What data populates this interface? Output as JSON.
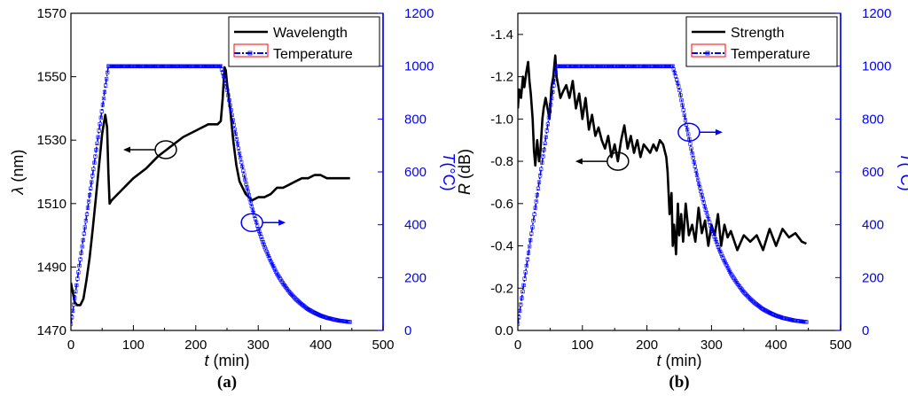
{
  "chart_data": [
    {
      "type": "line",
      "panel_label": "(a)",
      "x_axis": {
        "label": "t",
        "unit": " (min)",
        "range": [
          0,
          500
        ],
        "ticks": [
          0,
          100,
          200,
          300,
          400,
          500
        ]
      },
      "y_left": {
        "label": "λ",
        "unit": " (nm)",
        "range": [
          1470,
          1570
        ],
        "ticks": [
          1470,
          1490,
          1510,
          1530,
          1550,
          1570
        ]
      },
      "y_right": {
        "label": "T",
        "unit": "(°C)",
        "range": [
          0,
          1200
        ],
        "ticks": [
          0,
          200,
          400,
          600,
          800,
          1000,
          1200
        ],
        "color": "#0000ff"
      },
      "legend": {
        "placement": "top-right",
        "entries": [
          "Wavelength",
          "Temperature"
        ]
      },
      "series": [
        {
          "name": "Wavelength",
          "axis": "left",
          "color": "#000000",
          "x": [
            0,
            3,
            6,
            10,
            15,
            20,
            25,
            30,
            35,
            40,
            45,
            50,
            55,
            58,
            60,
            62,
            65,
            80,
            100,
            120,
            140,
            160,
            180,
            200,
            220,
            235,
            240,
            243,
            246,
            248,
            250,
            255,
            260,
            265,
            270,
            280,
            290,
            300,
            310,
            320,
            330,
            340,
            350,
            360,
            370,
            380,
            390,
            400,
            410,
            420,
            430,
            440,
            447
          ],
          "y": [
            1485,
            1482,
            1479,
            1478,
            1478,
            1480,
            1486,
            1493,
            1502,
            1512,
            1522,
            1532,
            1538,
            1534,
            1520,
            1510,
            1511,
            1514,
            1518,
            1521,
            1525,
            1528,
            1531,
            1533,
            1535,
            1535,
            1536,
            1543,
            1553,
            1552,
            1548,
            1540,
            1530,
            1522,
            1517,
            1513,
            1511,
            1512,
            1512,
            1513,
            1515,
            1515,
            1516,
            1517,
            1518,
            1518,
            1519,
            1519,
            1518,
            1518,
            1518,
            1518,
            1518
          ]
        },
        {
          "name": "Temperature",
          "axis": "right",
          "color": "#0000ff",
          "x": [
            0,
            60,
            240,
            250,
            260,
            270,
            280,
            290,
            300,
            310,
            320,
            330,
            340,
            350,
            360,
            370,
            380,
            390,
            400,
            410,
            420,
            430,
            440,
            447
          ],
          "y": [
            25,
            1000,
            1000,
            915,
            790,
            670,
            560,
            465,
            385,
            318,
            262,
            215,
            177,
            145,
            119,
            98,
            80,
            67,
            56,
            48,
            42,
            37,
            34,
            32
          ]
        }
      ],
      "annotations": [
        {
          "type": "circle-arrow",
          "at": [
            152,
            1527
          ],
          "direction": "left",
          "target": "left-axis"
        },
        {
          "type": "circle-arrow",
          "at": [
            290,
            1504
          ],
          "direction": "right",
          "target": "right-axis"
        }
      ]
    },
    {
      "type": "line",
      "panel_label": "(b)",
      "x_axis": {
        "label": "t",
        "unit": " (min)",
        "range": [
          0,
          500
        ],
        "ticks": [
          0,
          100,
          200,
          300,
          400,
          500
        ]
      },
      "y_left": {
        "label": "R",
        "unit": " (dB)",
        "range": [
          0,
          -1.5
        ],
        "ticks": [
          0,
          -0.2,
          -0.4,
          -0.6,
          -0.8,
          -1.0,
          -1.2,
          -1.4
        ],
        "tick_labels": [
          "0.0",
          "-0.2",
          "-0.4",
          "-0.6",
          "-0.8",
          "-1.0",
          "-1.2",
          "-1.4"
        ]
      },
      "y_right": {
        "label": "T",
        "unit": "(°C)",
        "range": [
          0,
          1200
        ],
        "ticks": [
          0,
          200,
          400,
          600,
          800,
          1000,
          1200
        ],
        "color": "#0000ff"
      },
      "legend": {
        "placement": "top-right",
        "entries": [
          "Strength",
          "Temperature"
        ]
      },
      "series": [
        {
          "name": "Strength",
          "axis": "left",
          "color": "#000000",
          "x": [
            0,
            2,
            5,
            8,
            10,
            13,
            16,
            18,
            20,
            23,
            25,
            27,
            30,
            33,
            35,
            38,
            40,
            43,
            46,
            49,
            52,
            55,
            58,
            60,
            63,
            66,
            70,
            75,
            80,
            85,
            90,
            95,
            100,
            105,
            110,
            115,
            120,
            125,
            130,
            135,
            140,
            145,
            150,
            155,
            160,
            165,
            170,
            175,
            180,
            185,
            190,
            195,
            200,
            205,
            210,
            215,
            220,
            225,
            230,
            232,
            235,
            238,
            240,
            242,
            245,
            248,
            250,
            253,
            256,
            260,
            265,
            270,
            275,
            280,
            285,
            290,
            295,
            300,
            305,
            310,
            315,
            320,
            325,
            330,
            340,
            350,
            360,
            370,
            380,
            390,
            400,
            410,
            420,
            430,
            440,
            447
          ],
          "y": [
            -1.05,
            -1.14,
            -1.1,
            -1.2,
            -1.15,
            -1.22,
            -1.27,
            -1.18,
            -1.12,
            -1.0,
            -0.85,
            -0.78,
            -0.9,
            -0.8,
            -0.85,
            -1.0,
            -1.05,
            -1.1,
            -1.05,
            -1.0,
            -1.15,
            -1.2,
            -1.3,
            -1.2,
            -1.15,
            -1.1,
            -1.13,
            -1.16,
            -1.1,
            -1.18,
            -1.05,
            -1.12,
            -1.0,
            -1.1,
            -0.95,
            -1.02,
            -0.92,
            -0.96,
            -0.9,
            -0.86,
            -0.92,
            -0.82,
            -0.88,
            -0.8,
            -0.9,
            -0.97,
            -0.86,
            -0.92,
            -0.84,
            -0.9,
            -0.82,
            -0.88,
            -0.86,
            -0.84,
            -0.88,
            -0.85,
            -0.9,
            -0.88,
            -0.82,
            -0.75,
            -0.55,
            -0.65,
            -0.4,
            -0.5,
            -0.36,
            -0.6,
            -0.45,
            -0.55,
            -0.42,
            -0.6,
            -0.45,
            -0.5,
            -0.42,
            -0.58,
            -0.46,
            -0.52,
            -0.4,
            -0.5,
            -0.45,
            -0.55,
            -0.4,
            -0.5,
            -0.44,
            -0.47,
            -0.38,
            -0.45,
            -0.42,
            -0.45,
            -0.38,
            -0.48,
            -0.4,
            -0.48,
            -0.44,
            -0.46,
            -0.42,
            -0.41
          ]
        },
        {
          "name": "Temperature",
          "axis": "right",
          "color": "#0000ff",
          "x": [
            0,
            60,
            240,
            250,
            260,
            270,
            280,
            290,
            300,
            310,
            320,
            330,
            340,
            350,
            360,
            370,
            380,
            390,
            400,
            410,
            420,
            430,
            440,
            447
          ],
          "y": [
            25,
            1000,
            1000,
            915,
            790,
            670,
            560,
            465,
            385,
            318,
            262,
            215,
            177,
            145,
            119,
            98,
            80,
            67,
            56,
            48,
            42,
            37,
            34,
            32
          ]
        }
      ],
      "annotations": [
        {
          "type": "circle-arrow",
          "at": [
            155,
            -0.8
          ],
          "direction": "left",
          "target": "left-axis"
        },
        {
          "type": "circle-arrow",
          "at": [
            265,
            750
          ],
          "axis": "right",
          "direction": "right",
          "target": "right-axis"
        }
      ]
    }
  ]
}
